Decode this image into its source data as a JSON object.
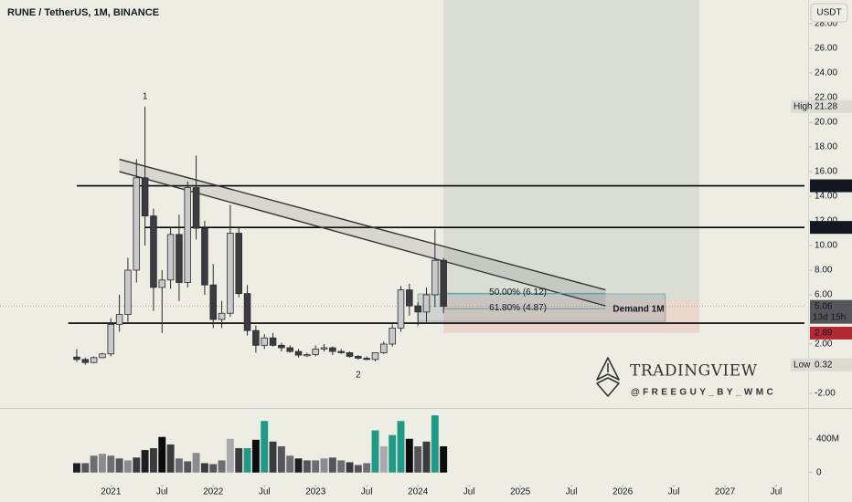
{
  "chart_data": {
    "type": "candlestick",
    "title": "RUNE / TetherUS, 1M, BINANCE",
    "currency": "USDT",
    "x": [
      "2020-09",
      "2020-10",
      "2020-11",
      "2020-12",
      "2021-01",
      "2021-02",
      "2021-03",
      "2021-04",
      "2021-05",
      "2021-06",
      "2021-07",
      "2021-08",
      "2021-09",
      "2021-10",
      "2021-11",
      "2021-12",
      "2022-01",
      "2022-02",
      "2022-03",
      "2022-04",
      "2022-05",
      "2022-06",
      "2022-07",
      "2022-08",
      "2022-09",
      "2022-10",
      "2022-11",
      "2022-12",
      "2023-01",
      "2023-02",
      "2023-03",
      "2023-04",
      "2023-05",
      "2023-06",
      "2023-07",
      "2023-08",
      "2023-09",
      "2023-10",
      "2023-11",
      "2023-12",
      "2024-01",
      "2024-02",
      "2024-03",
      "2024-04"
    ],
    "open": [
      0.95,
      0.75,
      0.5,
      0.9,
      1.2,
      3.6,
      4.4,
      8.0,
      15.5,
      12.4,
      6.6,
      7.2,
      10.9,
      7.0,
      14.7,
      11.4,
      6.8,
      4.0,
      4.5,
      11.0,
      6.1,
      3.1,
      1.9,
      2.5,
      1.9,
      1.7,
      1.4,
      1.05,
      1.15,
      1.6,
      1.7,
      1.4,
      1.3,
      1.0,
      0.85,
      0.75,
      1.3,
      2.0,
      3.3,
      6.4,
      5.1,
      4.6,
      6.0,
      8.8
    ],
    "high": [
      1.6,
      0.9,
      1.0,
      1.3,
      4.1,
      6.0,
      9.0,
      17.0,
      21.28,
      13.0,
      8.0,
      11.5,
      12.5,
      15.2,
      17.3,
      12.0,
      8.5,
      5.5,
      13.3,
      11.5,
      6.8,
      3.5,
      2.8,
      2.9,
      2.1,
      1.9,
      1.6,
      1.3,
      1.9,
      2.0,
      1.8,
      1.6,
      1.4,
      1.1,
      1.0,
      1.3,
      2.2,
      3.6,
      6.7,
      6.9,
      5.4,
      6.6,
      11.3,
      9.0
    ],
    "low": [
      0.55,
      0.32,
      0.45,
      0.85,
      1.0,
      3.0,
      3.8,
      7.0,
      10.0,
      4.7,
      2.9,
      6.5,
      5.5,
      6.6,
      10.5,
      6.0,
      3.3,
      3.3,
      4.2,
      5.8,
      2.7,
      1.3,
      1.6,
      1.8,
      1.4,
      1.3,
      0.9,
      0.95,
      1.0,
      1.4,
      1.1,
      1.2,
      0.9,
      0.75,
      0.7,
      0.6,
      1.2,
      1.8,
      3.0,
      4.3,
      3.5,
      3.8,
      5.0,
      4.5
    ],
    "close": [
      0.75,
      0.5,
      0.9,
      1.2,
      3.6,
      4.4,
      8.0,
      15.5,
      12.4,
      6.6,
      7.2,
      10.9,
      7.0,
      14.7,
      11.4,
      6.8,
      4.0,
      4.5,
      11.0,
      6.1,
      3.1,
      1.9,
      2.5,
      1.9,
      1.7,
      1.4,
      1.1,
      1.15,
      1.6,
      1.7,
      1.4,
      1.3,
      1.0,
      0.85,
      0.75,
      1.3,
      2.0,
      3.3,
      6.4,
      5.1,
      4.6,
      6.0,
      8.8,
      5.06
    ],
    "up_color": "#c9c9cb",
    "down_color": "#3b3b40",
    "wick_color": "#2a2a2e",
    "volume": [
      111,
      111,
      200,
      222,
      200,
      167,
      144,
      178,
      267,
      289,
      422,
      333,
      167,
      133,
      233,
      111,
      100,
      144,
      400,
      289,
      289,
      389,
      611,
      367,
      311,
      200,
      167,
      144,
      144,
      167,
      178,
      144,
      122,
      89,
      111,
      500,
      311,
      444,
      611,
      400,
      311,
      367,
      678,
      311
    ],
    "volume_colors": [
      "#1f1f23",
      "#55555b",
      "#6d6d73",
      "#8a8a8f",
      "#6d6d73",
      "#55555b",
      "#8a8a8f",
      "#3a3a3f",
      "#1f1f23",
      "#3a3a3f",
      "#0c0c0e",
      "#3a3a3f",
      "#6d6d73",
      "#55555b",
      "#8a8a8f",
      "#3a3a3f",
      "#55555b",
      "#6d6d73",
      "#a9a9ad",
      "#3a3a3f",
      "#1f9a87",
      "#0c0c0e",
      "#1f9a87",
      "#3a3a3f",
      "#55555b",
      "#6d6d73",
      "#1f1f23",
      "#55555b",
      "#6d6d73",
      "#8a8a8f",
      "#55555b",
      "#6d6d73",
      "#3a3a3f",
      "#55555b",
      "#6d6d73",
      "#1f9a87",
      "#a9a9ad",
      "#1f9a87",
      "#1f9a87",
      "#0c0c0e",
      "#55555b",
      "#3a3a3f",
      "#1f9a87",
      "#0c0c0e"
    ],
    "xlim": [
      "2019-12",
      "2027-10"
    ],
    "xticks": [
      {
        "value": "2021-01",
        "label": "2021"
      },
      {
        "value": "2021-07",
        "label": "Jul"
      },
      {
        "value": "2022-01",
        "label": "2022"
      },
      {
        "value": "2022-07",
        "label": "Jul"
      },
      {
        "value": "2023-01",
        "label": "2023"
      },
      {
        "value": "2023-07",
        "label": "Jul"
      },
      {
        "value": "2024-01",
        "label": "2024"
      },
      {
        "value": "2024-07",
        "label": "Jul"
      },
      {
        "value": "2025-01",
        "label": "2025"
      },
      {
        "value": "2025-07",
        "label": "Jul"
      },
      {
        "value": "2026-01",
        "label": "2026"
      },
      {
        "value": "2026-07",
        "label": "Jul"
      },
      {
        "value": "2027-01",
        "label": "2027"
      },
      {
        "value": "2027-07",
        "label": "Jul"
      }
    ],
    "ylim": [
      -3.04,
      29.93
    ],
    "yticks": [
      {
        "value": 28,
        "label": "28.00"
      },
      {
        "value": 26,
        "label": "26.00"
      },
      {
        "value": 24,
        "label": "24.00"
      },
      {
        "value": 22,
        "label": "22.00"
      },
      {
        "value": 20,
        "label": "20.00"
      },
      {
        "value": 18,
        "label": "18.00"
      },
      {
        "value": 16,
        "label": "16.00"
      },
      {
        "value": 14,
        "label": "14.00"
      },
      {
        "value": 12,
        "label": "12.00"
      },
      {
        "value": 10,
        "label": "10.00"
      },
      {
        "value": 8,
        "label": "8.00"
      },
      {
        "value": 6,
        "label": "6.00"
      },
      {
        "value": 2,
        "label": "2.00"
      },
      {
        "value": -2,
        "label": "-2.00"
      }
    ],
    "grid": false,
    "volume_ylim": [
      -133,
      733
    ],
    "volume_yticks": [
      {
        "value": 400,
        "label": "400M"
      },
      0
    ],
    "levels": [
      {
        "value": 14.85,
        "start": "2020-09",
        "badge_color": "#131722"
      },
      {
        "value": 11.47,
        "start": "2021-05",
        "badge_color": "#131722"
      },
      {
        "value": 3.7,
        "start": "2020-08"
      }
    ],
    "high_marker": {
      "label": "High",
      "value": 21.28
    },
    "low_marker": {
      "label": "Low",
      "value": 0.32
    },
    "last_price": {
      "value": 5.06,
      "countdown": "13d 15h",
      "color": "#55555a"
    },
    "stop_badge": {
      "value": 2.89,
      "color": "#b22833"
    },
    "trendlines": [
      {
        "x": [
          "2021-02",
          "2025-11"
        ],
        "y": [
          17.0,
          6.4
        ]
      },
      {
        "x": [
          "2021-02",
          "2025-11"
        ],
        "y": [
          16.0,
          5.1
        ]
      }
    ],
    "position": {
      "start": "2024-04",
      "end": "2026-10",
      "entry": 5.63,
      "stop": 2.89,
      "target": 30
    },
    "demand_zone": {
      "label": "Demand 1M",
      "x": [
        "2024-01",
        "2026-06"
      ],
      "y": [
        6.07,
        3.85
      ]
    },
    "fib_levels": [
      {
        "label": "50.00% (6.12)",
        "value": 6.12,
        "x": [
          "2024-04",
          "2025-11"
        ]
      },
      {
        "label": "61.80% (4.87)",
        "value": 4.87,
        "x": [
          "2024-04",
          "2025-11"
        ]
      }
    ],
    "wave_labels": [
      {
        "text": "1",
        "x": "2021-05",
        "y": 22.1
      },
      {
        "text": "2",
        "x": "2023-06",
        "y": -0.5
      }
    ],
    "watermark": {
      "brand": "TRADINGVIEW",
      "author": "@FREEGUY_BY_WMC"
    }
  }
}
